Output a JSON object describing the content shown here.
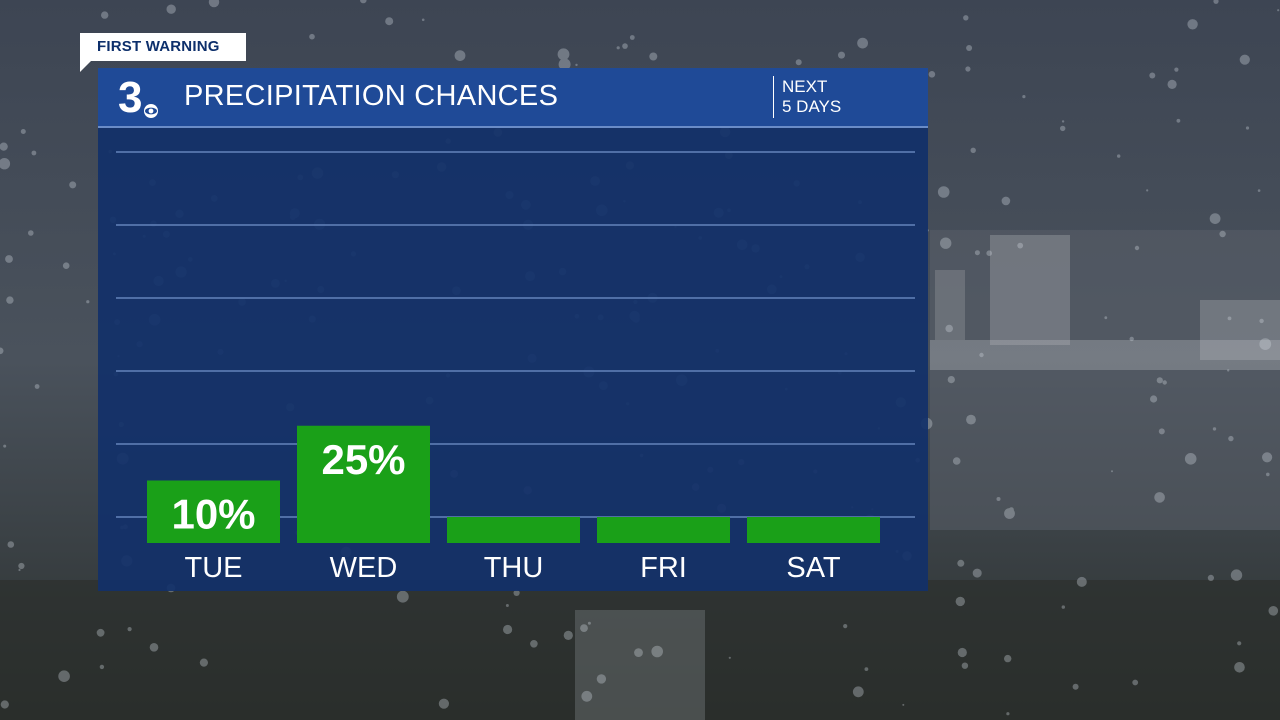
{
  "badge": "FIRST WARNING",
  "station_logo": "3",
  "header": {
    "title": "PRECIPITATION CHANCES",
    "subtitle_line1": "NEXT",
    "subtitle_line2": "5 DAYS"
  },
  "colors": {
    "bar": "#1aa018",
    "panel": "#123069",
    "header": "#1f4a97",
    "label": "#ffffff"
  },
  "chart_data": {
    "type": "bar",
    "categories": [
      "TUE",
      "WED",
      "THU",
      "FRI",
      "SAT"
    ],
    "values": [
      10,
      25,
      0,
      0,
      0
    ],
    "value_labels": [
      "10%",
      "25%",
      "",
      "",
      ""
    ],
    "ylim": [
      0,
      100
    ],
    "grid": true,
    "title": "PRECIPITATION CHANCES"
  }
}
